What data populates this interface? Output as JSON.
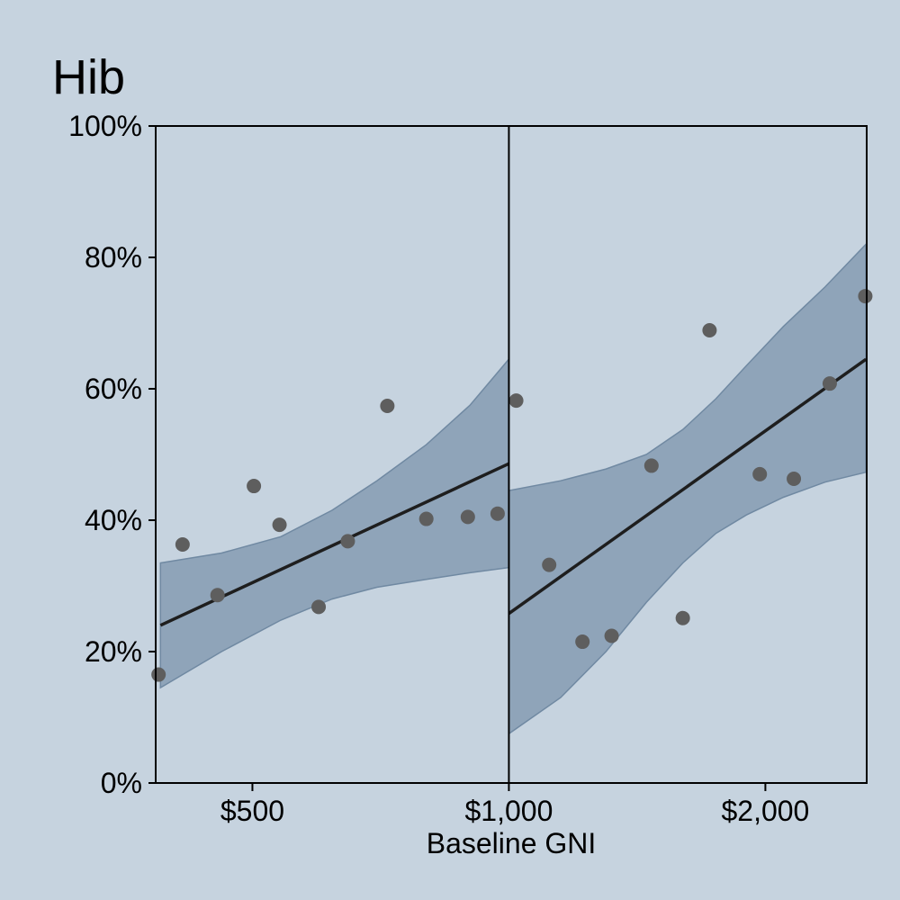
{
  "chart_data": {
    "type": "scatter",
    "title": "Hib",
    "xlabel": "Baseline GNI",
    "ylabel": "",
    "x_scale": "log",
    "xlim": [
      385,
      2630
    ],
    "ylim": [
      0,
      100
    ],
    "breakpoint": 1000,
    "x_tick_values": [
      500,
      1000,
      2000
    ],
    "x_tick_labels": [
      "$500",
      "$1,000",
      "$2,000"
    ],
    "y_tick_values": [
      0,
      20,
      40,
      60,
      80,
      100
    ],
    "y_tick_labels": [
      "0%",
      "20%",
      "40%",
      "60%",
      "80%",
      "100%"
    ],
    "grid": false,
    "colors": {
      "background": "#c6d3df",
      "band_fill": "#7f97ae",
      "band_edge": "#7089a2",
      "fit_line": "#1e1e1e",
      "point": "#5e5e5e",
      "axis": "#000000"
    },
    "points": [
      {
        "x": 388,
        "y": 16.5
      },
      {
        "x": 414,
        "y": 36.3
      },
      {
        "x": 455,
        "y": 28.6
      },
      {
        "x": 502,
        "y": 45.2
      },
      {
        "x": 538,
        "y": 39.3
      },
      {
        "x": 598,
        "y": 26.8
      },
      {
        "x": 647,
        "y": 36.8
      },
      {
        "x": 720,
        "y": 57.4
      },
      {
        "x": 800,
        "y": 40.2
      },
      {
        "x": 895,
        "y": 40.5
      },
      {
        "x": 970,
        "y": 41.0
      },
      {
        "x": 1020,
        "y": 58.2
      },
      {
        "x": 1115,
        "y": 33.2
      },
      {
        "x": 1220,
        "y": 21.5
      },
      {
        "x": 1320,
        "y": 22.4
      },
      {
        "x": 1470,
        "y": 48.3
      },
      {
        "x": 1600,
        "y": 25.1
      },
      {
        "x": 1720,
        "y": 68.9
      },
      {
        "x": 1970,
        "y": 47.0
      },
      {
        "x": 2160,
        "y": 46.3
      },
      {
        "x": 2380,
        "y": 60.8
      },
      {
        "x": 2620,
        "y": 74.1
      }
    ],
    "segments": [
      {
        "fit": [
          {
            "x": 390,
            "y": 24.0
          },
          {
            "x": 1000,
            "y": 48.6
          }
        ],
        "band": [
          {
            "x": 390,
            "lo": 14.5,
            "hi": 33.5
          },
          {
            "x": 460,
            "lo": 20.0,
            "hi": 35.0
          },
          {
            "x": 540,
            "lo": 24.8,
            "hi": 37.5
          },
          {
            "x": 620,
            "lo": 28.0,
            "hi": 41.5
          },
          {
            "x": 700,
            "lo": 29.8,
            "hi": 46.0
          },
          {
            "x": 800,
            "lo": 31.0,
            "hi": 51.5
          },
          {
            "x": 900,
            "lo": 32.0,
            "hi": 57.5
          },
          {
            "x": 1000,
            "lo": 32.8,
            "hi": 64.5
          }
        ]
      },
      {
        "fit": [
          {
            "x": 1000,
            "y": 25.8
          },
          {
            "x": 2625,
            "y": 64.5
          }
        ],
        "band": [
          {
            "x": 1000,
            "lo": 7.5,
            "hi": 44.5
          },
          {
            "x": 1150,
            "lo": 13.0,
            "hi": 46.0
          },
          {
            "x": 1300,
            "lo": 20.0,
            "hi": 47.8
          },
          {
            "x": 1450,
            "lo": 27.5,
            "hi": 50.0
          },
          {
            "x": 1600,
            "lo": 33.5,
            "hi": 53.8
          },
          {
            "x": 1750,
            "lo": 38.0,
            "hi": 58.5
          },
          {
            "x": 1900,
            "lo": 40.8,
            "hi": 63.5
          },
          {
            "x": 2100,
            "lo": 43.5,
            "hi": 69.5
          },
          {
            "x": 2350,
            "lo": 45.8,
            "hi": 75.5
          },
          {
            "x": 2625,
            "lo": 47.3,
            "hi": 82.0
          }
        ]
      }
    ]
  }
}
